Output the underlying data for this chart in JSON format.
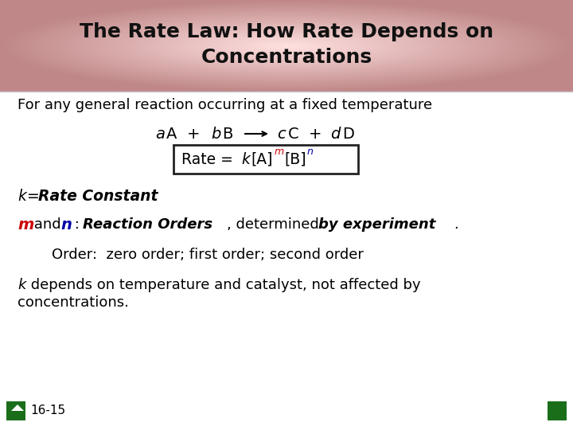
{
  "title_line1": "The Rate Law: How Rate Depends on",
  "title_line2": "Concentrations",
  "title_fontsize": 18,
  "text_black": "#000000",
  "text_red": "#cc0000",
  "text_blue": "#0000aa",
  "green_square": "#1a6e1a",
  "slide_number": "16-15",
  "line1": "For any general reaction occurring at a fixed temperature",
  "order_line": "Order:  zero order; first order; second order",
  "body_fontsize": 13,
  "eq_fontsize": 14
}
